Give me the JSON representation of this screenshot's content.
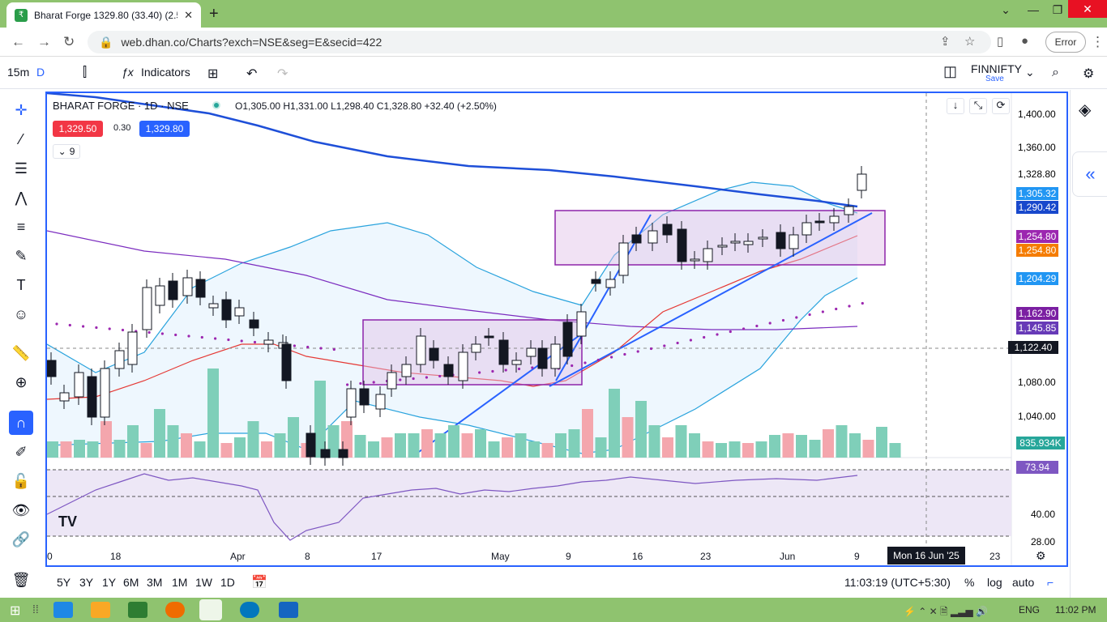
{
  "browser": {
    "tab_title": "Bharat Forge 1329.80 (33.40) (2.5",
    "url": "web.dhan.co/Charts?exch=NSE&seg=E&secid=422",
    "error_label": "Error"
  },
  "toolbar": {
    "interval": "15m",
    "interval_mode": "D",
    "indicators": "Indicators",
    "symbol": "FINNIFTY",
    "save": "Save"
  },
  "legend": {
    "title": "BHARAT FORGE · 1D · NSE",
    "ohlc": "O1,305.00 H1,331.00 L1,298.40 C1,328.80 +32.40 (+2.50%)",
    "sell": "1,329.50",
    "spread": "0.30",
    "buy": "1,329.80",
    "collapse": "9"
  },
  "price_axis": {
    "ticks": [
      "1,400.00",
      "1,360.00",
      "1,328.80",
      "1,080.00",
      "1,040.00"
    ],
    "rsi_ticks": [
      "40.00",
      "28.00"
    ]
  },
  "badges": [
    {
      "text": "1,305.32",
      "color": "#2196f3"
    },
    {
      "text": "1,290.42",
      "color": "#1848cc"
    },
    {
      "text": "1,254.80",
      "color": "#9c27b0"
    },
    {
      "text": "1,254.80",
      "color": "#f57c00"
    },
    {
      "text": "1,204.29",
      "color": "#2196f3"
    },
    {
      "text": "1,162.90",
      "color": "#7b1fa2"
    },
    {
      "text": "1,145.85",
      "color": "#673ab7"
    },
    {
      "text": "1,122.40",
      "color": "#131722"
    },
    {
      "text": "835.934K",
      "color": "#26a69a"
    },
    {
      "text": "73.94",
      "color": "#7e57c2"
    }
  ],
  "time_axis": {
    "labels": [
      "0",
      "18",
      "Apr",
      "8",
      "17",
      "May",
      "9",
      "16",
      "23",
      "Jun",
      "9",
      "23"
    ],
    "cursor": "Mon 16 Jun '25"
  },
  "bottom": {
    "ranges": [
      "5Y",
      "3Y",
      "1Y",
      "6M",
      "3M",
      "1M",
      "1W",
      "1D"
    ],
    "clock": "11:03:19 (UTC+5:30)",
    "pct": "%",
    "log": "log",
    "auto": "auto"
  },
  "taskbar": {
    "lang": "ENG",
    "time": "11:02 PM"
  },
  "colors": {
    "up": "#ffffff",
    "down": "#131722",
    "vol_up": "#7fcfb9",
    "vol_down": "#f4a6ad",
    "accent": "#2962ff"
  }
}
